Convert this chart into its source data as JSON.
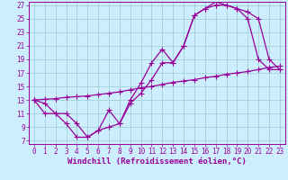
{
  "xlabel": "Windchill (Refroidissement éolien,°C)",
  "bg_color": "#cceeff",
  "line_color": "#990099",
  "grid_color": "#99cccc",
  "xlim": [
    -0.5,
    23.5
  ],
  "ylim": [
    6.5,
    27.5
  ],
  "xticks": [
    0,
    1,
    2,
    3,
    4,
    5,
    6,
    7,
    8,
    9,
    10,
    11,
    12,
    13,
    14,
    15,
    16,
    17,
    18,
    19,
    20,
    21,
    22,
    23
  ],
  "yticks": [
    7,
    9,
    11,
    13,
    15,
    17,
    19,
    21,
    23,
    25,
    27
  ],
  "line1_x": [
    0,
    1,
    2,
    3,
    4,
    5,
    6,
    7,
    8,
    9,
    10,
    11,
    12,
    13,
    14,
    15,
    16,
    17,
    18,
    19,
    20,
    21,
    22,
    23
  ],
  "line1_y": [
    13,
    12.5,
    11,
    11,
    9.5,
    7.5,
    8.5,
    9,
    9.5,
    12.5,
    14,
    16,
    18.5,
    18.5,
    21,
    25.5,
    26.5,
    27.5,
    27,
    26.5,
    26,
    25,
    19,
    17.5
  ],
  "line2_x": [
    0,
    1,
    2,
    3,
    4,
    5,
    6,
    7,
    8,
    9,
    10,
    11,
    12,
    13,
    14,
    15,
    16,
    17,
    18,
    19,
    20,
    21,
    22,
    23
  ],
  "line2_y": [
    13,
    13.1,
    13.2,
    13.4,
    13.5,
    13.6,
    13.8,
    14.0,
    14.2,
    14.5,
    14.8,
    15.0,
    15.3,
    15.6,
    15.8,
    16.0,
    16.3,
    16.5,
    16.8,
    17.0,
    17.2,
    17.5,
    17.8,
    18.0
  ],
  "line3_x": [
    0,
    1,
    2,
    3,
    4,
    5,
    6,
    7,
    8,
    9,
    10,
    11,
    12,
    13,
    14,
    15,
    16,
    17,
    18,
    19,
    20,
    21,
    22,
    23
  ],
  "line3_y": [
    13,
    11.0,
    11.0,
    9.5,
    7.5,
    7.5,
    8.5,
    11.5,
    9.5,
    13,
    15.5,
    18.5,
    20.5,
    18.5,
    21,
    25.5,
    26.5,
    27,
    27,
    26.5,
    25,
    19,
    17.5,
    17.5
  ],
  "marker": "+",
  "markersize": 4,
  "linewidth": 0.9,
  "tick_fontsize": 5.5,
  "label_fontsize": 6.5
}
